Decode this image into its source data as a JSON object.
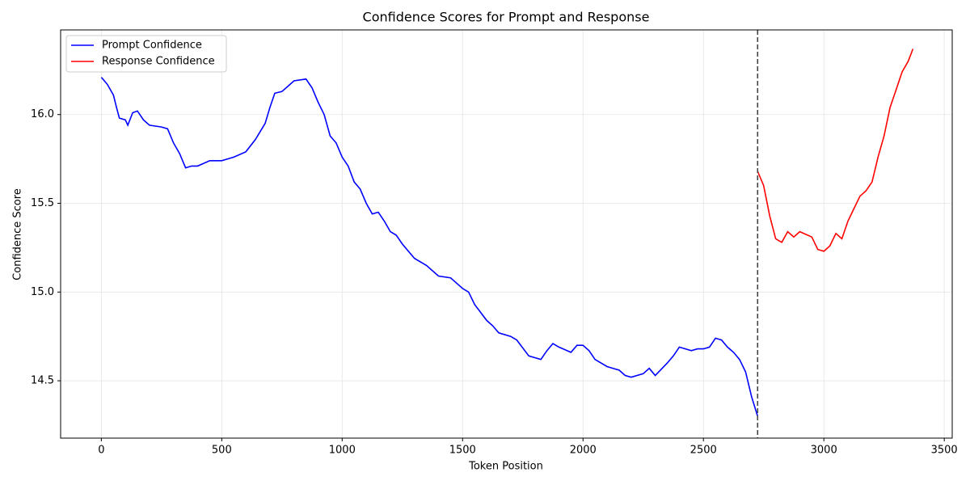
{
  "chart_data": {
    "type": "line",
    "title": "Confidence Scores for Prompt and Response",
    "xlabel": "Token Position",
    "ylabel": "Confidence Score",
    "xlim": [
      -169,
      3533
    ],
    "ylim": [
      14.177,
      16.477
    ],
    "xticks": [
      0,
      500,
      1000,
      1500,
      2000,
      2500,
      3000,
      3500
    ],
    "yticks": [
      14.5,
      {
        "value": 15,
        "label": "15.0"
      },
      15.5,
      {
        "value": 16,
        "label": "16.0"
      }
    ],
    "grid": true,
    "legend": "upper-left",
    "vline": {
      "x": 2725,
      "color": "#444444",
      "style": "dashed"
    },
    "series": [
      {
        "name": "Prompt Confidence",
        "color": "#0000ff",
        "x": [
          0,
          25,
          50,
          65,
          75,
          100,
          110,
          130,
          150,
          175,
          200,
          250,
          275,
          300,
          325,
          350,
          375,
          400,
          450,
          500,
          550,
          600,
          640,
          680,
          700,
          720,
          750,
          775,
          800,
          850,
          875,
          900,
          925,
          950,
          975,
          1000,
          1025,
          1050,
          1075,
          1100,
          1125,
          1150,
          1175,
          1200,
          1225,
          1250,
          1300,
          1350,
          1400,
          1450,
          1500,
          1525,
          1550,
          1600,
          1625,
          1650,
          1700,
          1725,
          1775,
          1800,
          1825,
          1850,
          1875,
          1900,
          1950,
          1975,
          2000,
          2025,
          2050,
          2100,
          2150,
          2175,
          2200,
          2250,
          2275,
          2300,
          2350,
          2375,
          2400,
          2450,
          2475,
          2500,
          2525,
          2550,
          2575,
          2600,
          2625,
          2650,
          2675,
          2700,
          2725
        ],
        "values": [
          16.21,
          16.17,
          16.11,
          16.03,
          15.98,
          15.97,
          15.94,
          16.01,
          16.02,
          15.97,
          15.94,
          15.93,
          15.92,
          15.84,
          15.78,
          15.7,
          15.71,
          15.71,
          15.74,
          15.74,
          15.76,
          15.79,
          15.86,
          15.95,
          16.04,
          16.12,
          16.13,
          16.16,
          16.19,
          16.2,
          16.15,
          16.07,
          16.0,
          15.88,
          15.84,
          15.76,
          15.71,
          15.62,
          15.58,
          15.5,
          15.44,
          15.45,
          15.4,
          15.34,
          15.32,
          15.27,
          15.19,
          15.15,
          15.09,
          15.08,
          15.02,
          15.0,
          14.93,
          14.84,
          14.81,
          14.77,
          14.75,
          14.73,
          14.64,
          14.63,
          14.62,
          14.67,
          14.71,
          14.69,
          14.66,
          14.7,
          14.7,
          14.67,
          14.62,
          14.58,
          14.56,
          14.53,
          14.52,
          14.54,
          14.57,
          14.53,
          14.6,
          14.64,
          14.69,
          14.67,
          14.68,
          14.68,
          14.69,
          14.74,
          14.73,
          14.69,
          14.66,
          14.62,
          14.55,
          14.41,
          14.3
        ]
      },
      {
        "name": "Response Confidence",
        "color": "#ff0000",
        "x": [
          2725,
          2750,
          2775,
          2800,
          2825,
          2850,
          2875,
          2900,
          2950,
          2975,
          3000,
          3025,
          3050,
          3075,
          3100,
          3125,
          3150,
          3175,
          3200,
          3225,
          3250,
          3275,
          3300,
          3325,
          3350,
          3370
        ],
        "values": [
          15.68,
          15.6,
          15.43,
          15.3,
          15.28,
          15.34,
          15.31,
          15.34,
          15.31,
          15.24,
          15.23,
          15.26,
          15.33,
          15.3,
          15.4,
          15.47,
          15.54,
          15.57,
          15.62,
          15.76,
          15.88,
          16.04,
          16.14,
          16.24,
          16.3,
          16.37
        ]
      }
    ]
  }
}
